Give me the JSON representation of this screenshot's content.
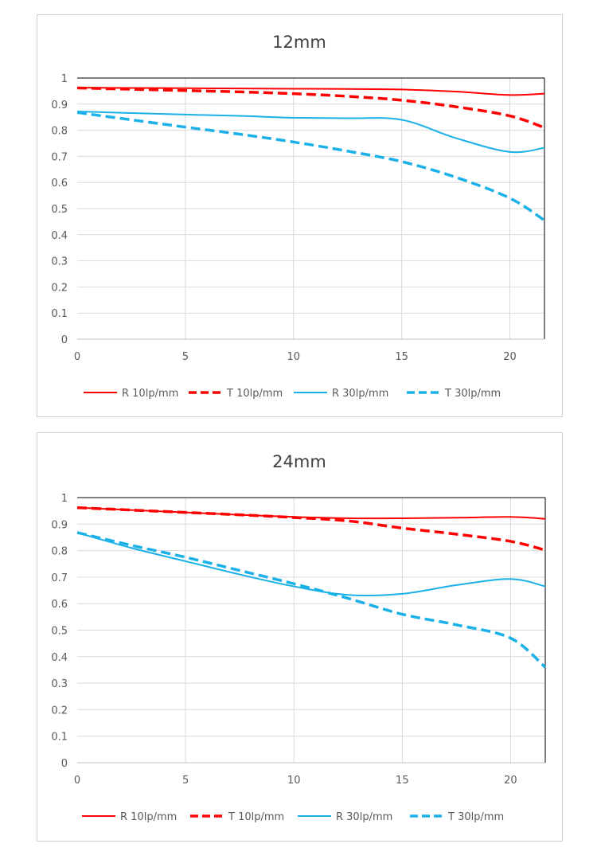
{
  "chart_data": [
    {
      "type": "line",
      "title": "12mm",
      "xlabel": "",
      "ylabel": "",
      "xlim": [
        0,
        21.6
      ],
      "ylim": [
        0,
        1
      ],
      "xticks": [
        "0",
        "5",
        "10",
        "15",
        "20"
      ],
      "yticks": [
        "0",
        "0.1",
        "0.2",
        "0.3",
        "0.4",
        "0.5",
        "0.6",
        "0.7",
        "0.8",
        "0.9",
        "1"
      ],
      "grid": true,
      "legend_position": "bottom",
      "x": [
        0,
        2.5,
        5,
        7.5,
        10,
        12.5,
        15,
        17.5,
        20,
        21.6
      ],
      "series": [
        {
          "name": "R 10lp/mm",
          "color": "#ff0000",
          "dashed": false,
          "values": [
            0.963,
            0.962,
            0.961,
            0.96,
            0.959,
            0.958,
            0.956,
            0.948,
            0.935,
            0.94
          ]
        },
        {
          "name": "T 10lp/mm",
          "color": "#ff0000",
          "dashed": true,
          "values": [
            0.962,
            0.957,
            0.952,
            0.947,
            0.94,
            0.93,
            0.915,
            0.89,
            0.855,
            0.81
          ]
        },
        {
          "name": "R 30lp/mm",
          "color": "#1ab0e8",
          "dashed": false,
          "values": [
            0.872,
            0.866,
            0.86,
            0.855,
            0.848,
            0.846,
            0.84,
            0.77,
            0.717,
            0.733
          ]
        },
        {
          "name": "T 30lp/mm",
          "color": "#1ab0e8",
          "dashed": true,
          "values": [
            0.868,
            0.84,
            0.812,
            0.785,
            0.755,
            0.72,
            0.68,
            0.62,
            0.54,
            0.455
          ]
        }
      ]
    },
    {
      "type": "line",
      "title": "24mm",
      "xlabel": "",
      "ylabel": "",
      "xlim": [
        0,
        21.6
      ],
      "ylim": [
        0,
        1
      ],
      "xticks": [
        "0",
        "5",
        "10",
        "15",
        "20"
      ],
      "yticks": [
        "0",
        "0.1",
        "0.2",
        "0.3",
        "0.4",
        "0.5",
        "0.6",
        "0.7",
        "0.8",
        "0.9",
        "1"
      ],
      "grid": true,
      "legend_position": "bottom",
      "x": [
        0,
        2.5,
        5,
        7.5,
        10,
        12.5,
        15,
        17.5,
        20,
        21.6
      ],
      "series": [
        {
          "name": "R 10lp/mm",
          "color": "#ff0000",
          "dashed": false,
          "values": [
            0.962,
            0.953,
            0.944,
            0.935,
            0.927,
            0.922,
            0.922,
            0.924,
            0.927,
            0.92
          ]
        },
        {
          "name": "T 10lp/mm",
          "color": "#ff0000",
          "dashed": true,
          "values": [
            0.962,
            0.953,
            0.944,
            0.935,
            0.925,
            0.912,
            0.885,
            0.862,
            0.835,
            0.802
          ]
        },
        {
          "name": "R 30lp/mm",
          "color": "#1ab0e8",
          "dashed": false,
          "values": [
            0.868,
            0.81,
            0.76,
            0.71,
            0.665,
            0.633,
            0.637,
            0.67,
            0.693,
            0.665
          ]
        },
        {
          "name": "T 30lp/mm",
          "color": "#1ab0e8",
          "dashed": true,
          "values": [
            0.868,
            0.82,
            0.775,
            0.725,
            0.675,
            0.62,
            0.56,
            0.52,
            0.47,
            0.36
          ]
        }
      ]
    }
  ]
}
